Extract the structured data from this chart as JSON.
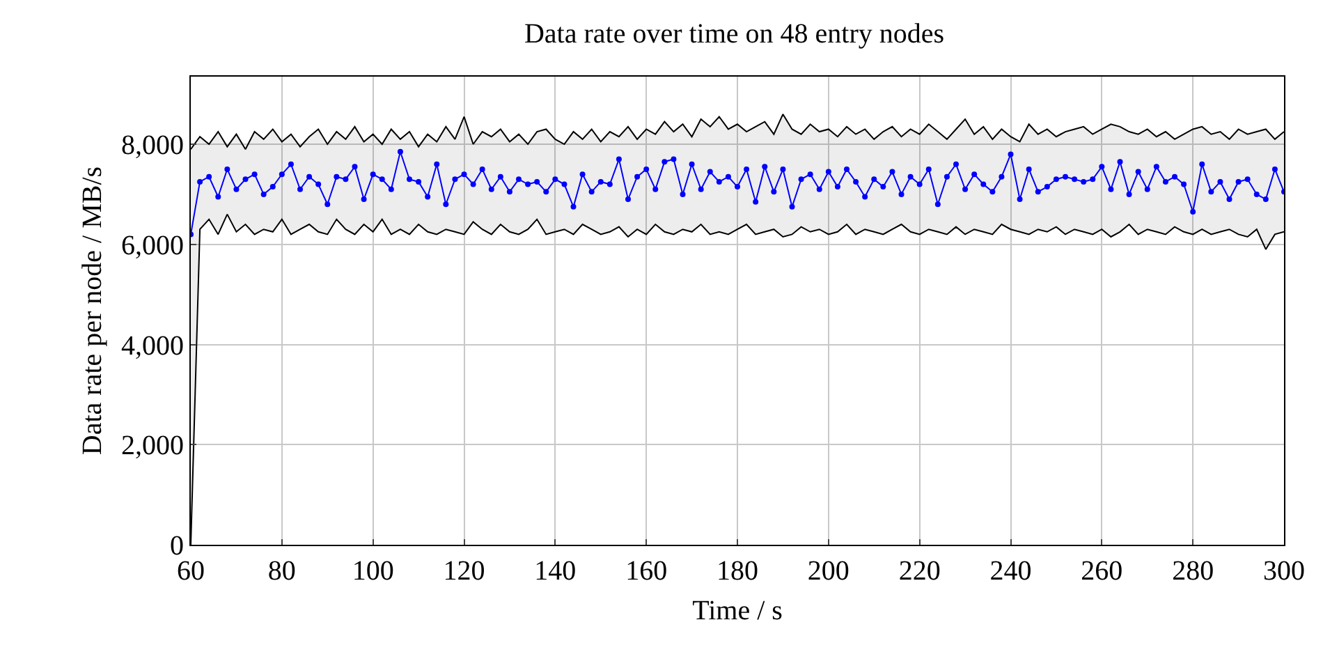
{
  "chart_data": {
    "type": "line",
    "title": "Data rate over time on 48 entry nodes",
    "xlabel": "Time / s",
    "ylabel": "Data rate per node / MB/s",
    "x": [
      60,
      62,
      64,
      66,
      68,
      70,
      72,
      74,
      76,
      78,
      80,
      82,
      84,
      86,
      88,
      90,
      92,
      94,
      96,
      98,
      100,
      102,
      104,
      106,
      108,
      110,
      112,
      114,
      116,
      118,
      120,
      122,
      124,
      126,
      128,
      130,
      132,
      134,
      136,
      138,
      140,
      142,
      144,
      146,
      148,
      150,
      152,
      154,
      156,
      158,
      160,
      162,
      164,
      166,
      168,
      170,
      172,
      174,
      176,
      178,
      180,
      182,
      184,
      186,
      188,
      190,
      192,
      194,
      196,
      198,
      200,
      202,
      204,
      206,
      208,
      210,
      212,
      214,
      216,
      218,
      220,
      222,
      224,
      226,
      228,
      230,
      232,
      234,
      236,
      238,
      240,
      242,
      244,
      246,
      248,
      250,
      252,
      254,
      256,
      258,
      260,
      262,
      264,
      266,
      268,
      270,
      272,
      274,
      276,
      278,
      280,
      282,
      284,
      286,
      288,
      290,
      292,
      294,
      296,
      298,
      300
    ],
    "series": [
      {
        "color": "#000000",
        "marker": "none",
        "values": [
          0,
          6300,
          6500,
          6200,
          6600,
          6250,
          6400,
          6200,
          6300,
          6250,
          6500,
          6200,
          6300,
          6400,
          6250,
          6200,
          6500,
          6300,
          6200,
          6400,
          6250,
          6500,
          6200,
          6300,
          6200,
          6400,
          6250,
          6200,
          6300,
          6250,
          6200,
          6450,
          6300,
          6200,
          6400,
          6250,
          6200,
          6300,
          6500,
          6200,
          6250,
          6300,
          6200,
          6400,
          6300,
          6200,
          6250,
          6350,
          6150,
          6300,
          6200,
          6400,
          6250,
          6200,
          6300,
          6250,
          6400,
          6200,
          6250,
          6200,
          6300,
          6400,
          6200,
          6250,
          6300,
          6150,
          6200,
          6350,
          6250,
          6300,
          6200,
          6250,
          6400,
          6200,
          6300,
          6250,
          6200,
          6300,
          6400,
          6250,
          6200,
          6300,
          6250,
          6200,
          6350,
          6200,
          6300,
          6250,
          6200,
          6400,
          6300,
          6250,
          6200,
          6300,
          6250,
          6350,
          6200,
          6300,
          6250,
          6200,
          6300,
          6150,
          6250,
          6400,
          6200,
          6300,
          6250,
          6200,
          6350,
          6250,
          6200,
          6300,
          6200,
          6250,
          6300,
          6200,
          6150,
          6300,
          5900,
          6200,
          6250
        ]
      },
      {
        "color": "#000000",
        "marker": "none",
        "values": [
          7900,
          8150,
          8000,
          8250,
          7950,
          8200,
          7900,
          8250,
          8100,
          8300,
          8050,
          8200,
          7950,
          8150,
          8300,
          8000,
          8250,
          8100,
          8350,
          8050,
          8200,
          8000,
          8300,
          8100,
          8250,
          7950,
          8200,
          8050,
          8350,
          8100,
          8550,
          8000,
          8250,
          8150,
          8300,
          8050,
          8200,
          8000,
          8250,
          8300,
          8100,
          8000,
          8250,
          8100,
          8300,
          8050,
          8250,
          8150,
          8350,
          8100,
          8300,
          8200,
          8450,
          8250,
          8400,
          8150,
          8500,
          8350,
          8550,
          8300,
          8400,
          8250,
          8350,
          8450,
          8200,
          8600,
          8300,
          8200,
          8400,
          8250,
          8300,
          8150,
          8350,
          8200,
          8300,
          8100,
          8250,
          8350,
          8150,
          8300,
          8200,
          8400,
          8250,
          8100,
          8300,
          8500,
          8200,
          8350,
          8100,
          8300,
          8150,
          8050,
          8400,
          8200,
          8300,
          8150,
          8250,
          8300,
          8350,
          8200,
          8300,
          8400,
          8350,
          8250,
          8200,
          8300,
          8150,
          8250,
          8100,
          8200,
          8300,
          8350,
          8200,
          8250,
          8100,
          8300,
          8200,
          8250,
          8300,
          8100,
          8250
        ]
      },
      {
        "color": "#0000ff",
        "marker": "circle",
        "values": [
          6200,
          7250,
          7350,
          6950,
          7500,
          7100,
          7300,
          7400,
          7000,
          7150,
          7400,
          7600,
          7100,
          7350,
          7200,
          6800,
          7350,
          7300,
          7550,
          6900,
          7400,
          7300,
          7100,
          7850,
          7300,
          7250,
          6950,
          7600,
          6800,
          7300,
          7400,
          7200,
          7500,
          7100,
          7350,
          7050,
          7300,
          7200,
          7250,
          7050,
          7300,
          7200,
          6750,
          7400,
          7050,
          7250,
          7200,
          7700,
          6900,
          7350,
          7500,
          7100,
          7650,
          7700,
          7000,
          7600,
          7100,
          7450,
          7250,
          7350,
          7150,
          7500,
          6850,
          7550,
          7050,
          7500,
          6750,
          7300,
          7400,
          7100,
          7450,
          7150,
          7500,
          7250,
          6950,
          7300,
          7150,
          7450,
          7000,
          7350,
          7200,
          7500,
          6800,
          7350,
          7600,
          7100,
          7400,
          7200,
          7050,
          7350,
          7800,
          6900,
          7500,
          7050,
          7150,
          7300,
          7350,
          7300,
          7250,
          7300,
          7550,
          7100,
          7650,
          7000,
          7450,
          7100,
          7550,
          7250,
          7350,
          7200,
          6650,
          7600,
          7050,
          7250,
          6900,
          7250,
          7300,
          7000,
          6900,
          7500,
          7050
        ],
        "lower": [
          0,
          6300,
          6500,
          6200,
          6600,
          6250,
          6400,
          6200,
          6300,
          6250,
          6500,
          6200,
          6300,
          6400,
          6250,
          6200,
          6500,
          6300,
          6200,
          6400,
          6250,
          6500,
          6200,
          6300,
          6200,
          6400,
          6250,
          6200,
          6300,
          6250,
          6200,
          6450,
          6300,
          6200,
          6400,
          6250,
          6200,
          6300,
          6500,
          6200,
          6250,
          6300,
          6200,
          6400,
          6300,
          6200,
          6250,
          6350,
          6150,
          6300,
          6200,
          6400,
          6250,
          6200,
          6300,
          6250,
          6400,
          6200,
          6250,
          6200,
          6300,
          6400,
          6200,
          6250,
          6300,
          6150,
          6200,
          6350,
          6250,
          6300,
          6200,
          6250,
          6400,
          6200,
          6300,
          6250,
          6200,
          6300,
          6400,
          6250,
          6200,
          6300,
          6250,
          6200,
          6350,
          6200,
          6300,
          6250,
          6200,
          6400,
          6300,
          6250,
          6200,
          6300,
          6250,
          6350,
          6200,
          6300,
          6250,
          6200,
          6300,
          6150,
          6250,
          6400,
          6200,
          6300,
          6250,
          6200,
          6350,
          6250,
          6200,
          6300,
          6200,
          6250,
          6300,
          6200,
          6150,
          6300,
          5900,
          6200,
          6250
        ],
        "upper": [
          7900,
          8150,
          8000,
          8250,
          7950,
          8200,
          7900,
          8250,
          8100,
          8300,
          8050,
          8200,
          7950,
          8150,
          8300,
          8000,
          8250,
          8100,
          8350,
          8050,
          8200,
          8000,
          8300,
          8100,
          8250,
          7950,
          8200,
          8050,
          8350,
          8100,
          8550,
          8000,
          8250,
          8150,
          8300,
          8050,
          8200,
          8000,
          8250,
          8300,
          8100,
          8000,
          8250,
          8100,
          8300,
          8050,
          8250,
          8150,
          8350,
          8100,
          8300,
          8200,
          8450,
          8250,
          8400,
          8150,
          8500,
          8350,
          8550,
          8300,
          8400,
          8250,
          8350,
          8450,
          8200,
          8600,
          8300,
          8200,
          8400,
          8250,
          8300,
          8150,
          8350,
          8200,
          8300,
          8100,
          8250,
          8350,
          8150,
          8300,
          8200,
          8400,
          8250,
          8100,
          8300,
          8500,
          8200,
          8350,
          8100,
          8300,
          8150,
          8050,
          8400,
          8200,
          8300,
          8150,
          8250,
          8300,
          8350,
          8200,
          8300,
          8400,
          8350,
          8250,
          8200,
          8300,
          8150,
          8250,
          8100,
          8200,
          8300,
          8350,
          8200,
          8250,
          8100,
          8300,
          8200,
          8250,
          8300,
          8100,
          8250
        ]
      }
    ],
    "xlim": [
      60,
      300
    ],
    "ylim": [
      0,
      9350
    ],
    "xticks": [
      60,
      80,
      100,
      120,
      140,
      160,
      180,
      200,
      220,
      240,
      260,
      280,
      300
    ],
    "yticks": [
      0,
      {
        "value": 2000,
        "label": "2,000"
      },
      {
        "value": 4000,
        "label": "4,000"
      },
      {
        "value": 6000,
        "label": "6,000"
      },
      {
        "value": 8000,
        "label": "8,000"
      }
    ],
    "grid": true
  }
}
